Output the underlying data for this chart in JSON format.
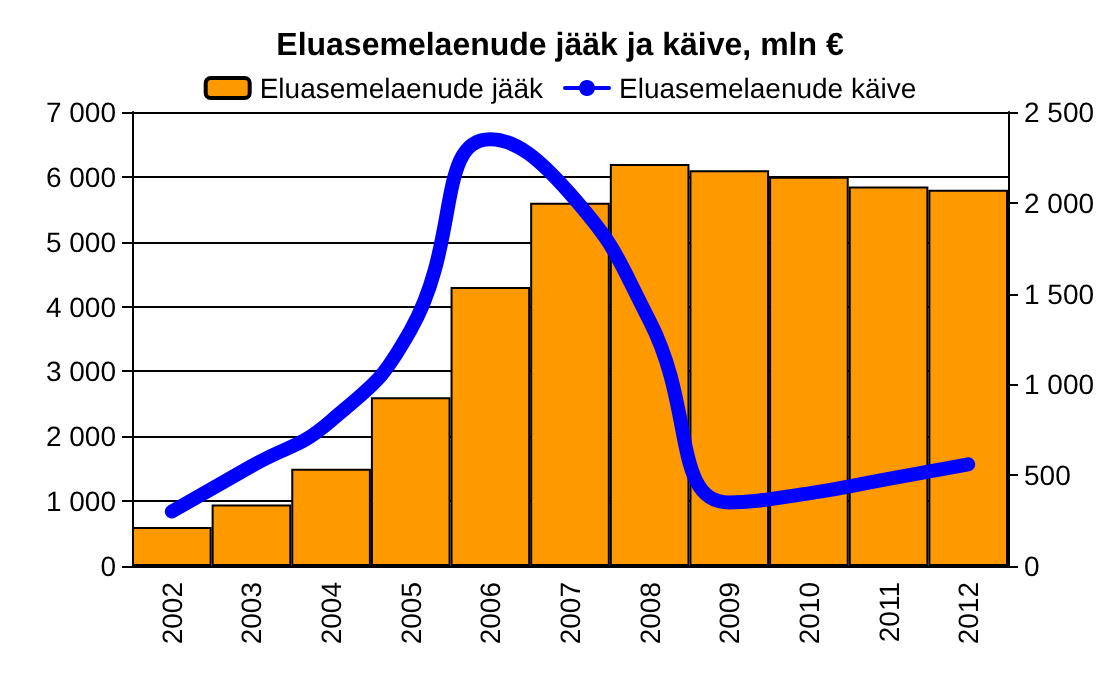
{
  "chart_data": {
    "type": "bar",
    "title": "Eluasemelaenude jääk ja käive, mln €",
    "categories": [
      "2002",
      "2003",
      "2004",
      "2005",
      "2006",
      "2007",
      "2008",
      "2009",
      "2010",
      "2011",
      "2012"
    ],
    "series": [
      {
        "name": "Eluasemelaenude jääk",
        "color": "#ff9900",
        "values": [
          600,
          950,
          1500,
          2600,
          4300,
          5600,
          6200,
          6100,
          6000,
          5850,
          5800
        ]
      },
      {
        "name": "Eluasemelaenude käive",
        "type": "line",
        "axis": "y2",
        "color": "#0000ff",
        "values": [
          300,
          550,
          800,
          1300,
          2350,
          2050,
          1350,
          350,
          400,
          480,
          560
        ]
      }
    ],
    "ylim": [
      0,
      7000
    ],
    "yticks": [
      0,
      {
        "value": 1000,
        "label": "1 000"
      },
      {
        "value": 2000,
        "label": "2 000"
      },
      {
        "value": 3000,
        "label": "3 000"
      },
      {
        "value": 4000,
        "label": "4 000"
      },
      {
        "value": 5000,
        "label": "5 000"
      },
      {
        "value": 6000,
        "label": "6 000"
      },
      {
        "value": 7000,
        "label": "7 000"
      }
    ],
    "y2lim": [
      0,
      2500
    ],
    "y2ticks": [
      0,
      500,
      {
        "value": 1000,
        "label": "1 000"
      },
      {
        "value": 1500,
        "label": "1 500"
      },
      {
        "value": 2000,
        "label": "2 000"
      },
      {
        "value": 2500,
        "label": "2 500"
      }
    ],
    "grid": "y",
    "legend": "top"
  }
}
